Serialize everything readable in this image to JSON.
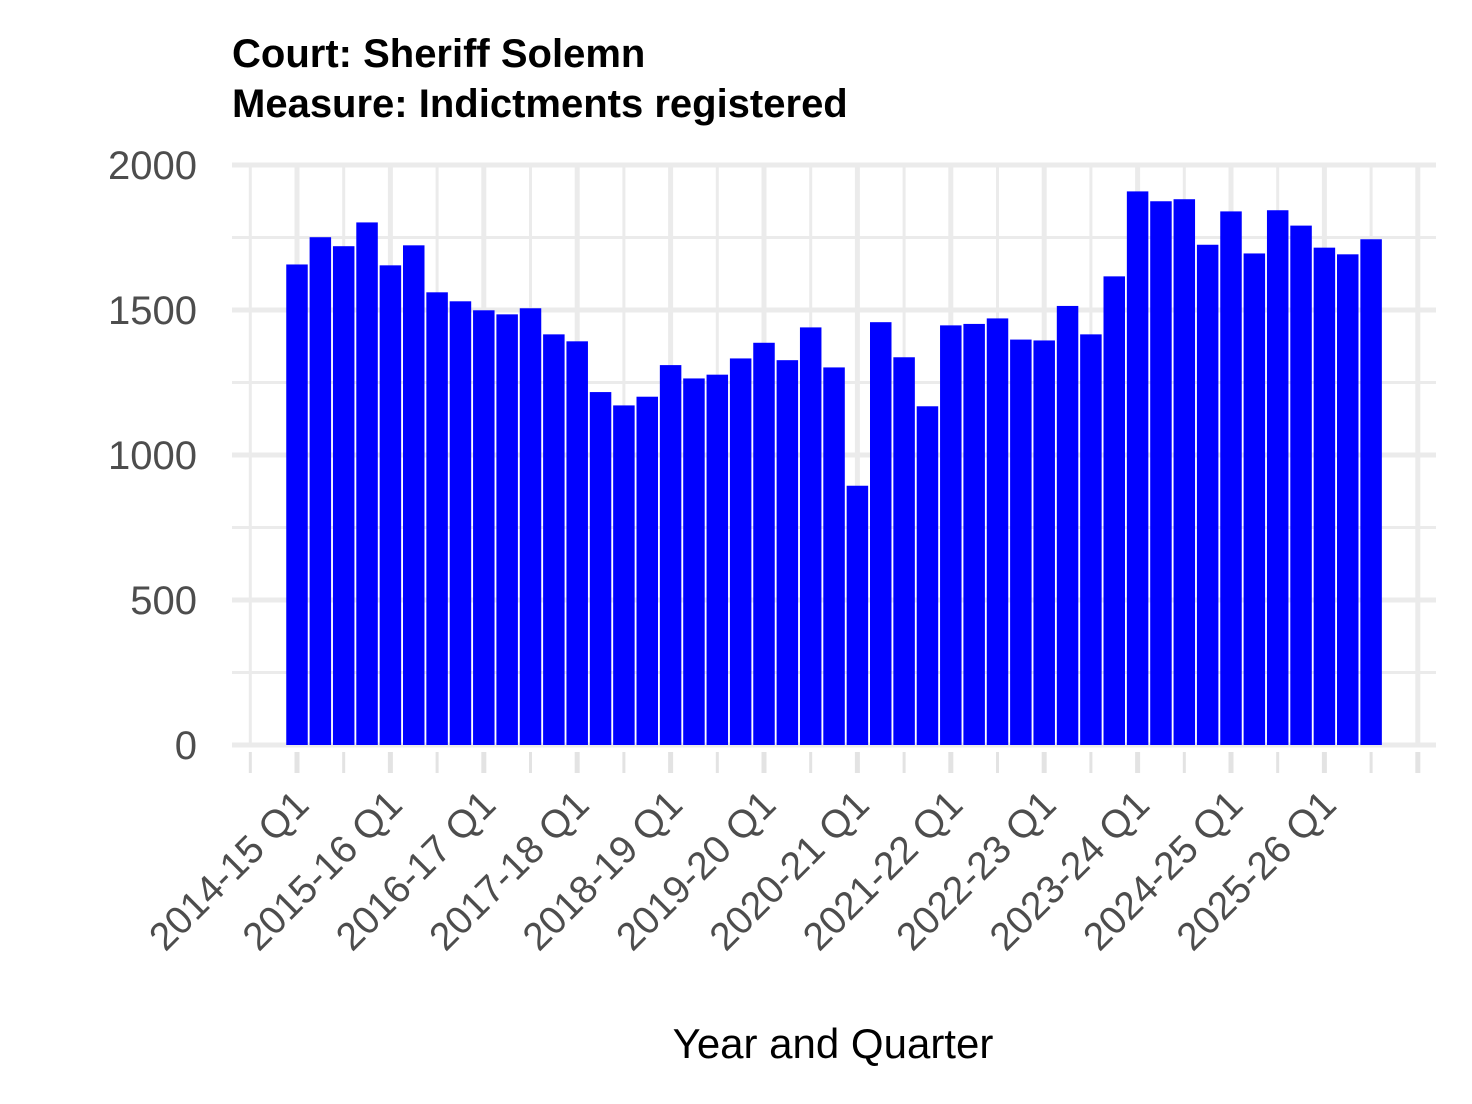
{
  "chart_data": {
    "type": "bar",
    "title_lines": [
      "Court: Sheriff Solemn",
      "Measure: Indictments registered"
    ],
    "xlabel": "Year and Quarter",
    "ylabel": "",
    "ylim": [
      0,
      2000
    ],
    "yticks": [
      0,
      500,
      1000,
      1500,
      2000
    ],
    "ytick_labels": [
      "0",
      "500",
      "1000",
      "1500",
      "2000"
    ],
    "grid": true,
    "bar_color": "#0000FF",
    "xtick_labels": [
      "2014-15 Q1",
      "2015-16 Q1",
      "2016-17 Q1",
      "2017-18 Q1",
      "2018-19 Q1",
      "2019-20 Q1",
      "2020-21 Q1",
      "2021-22 Q1",
      "2022-23 Q1",
      "2023-24 Q1",
      "2024-25 Q1",
      "2025-26 Q1"
    ],
    "categories": [
      "2014-15 Q1",
      "2014-15 Q2",
      "2014-15 Q3",
      "2014-15 Q4",
      "2015-16 Q1",
      "2015-16 Q2",
      "2015-16 Q3",
      "2015-16 Q4",
      "2016-17 Q1",
      "2016-17 Q2",
      "2016-17 Q3",
      "2016-17 Q4",
      "2017-18 Q1",
      "2017-18 Q2",
      "2017-18 Q3",
      "2017-18 Q4",
      "2018-19 Q1",
      "2018-19 Q2",
      "2018-19 Q3",
      "2018-19 Q4",
      "2019-20 Q1",
      "2019-20 Q2",
      "2019-20 Q3",
      "2019-20 Q4",
      "2020-21 Q1",
      "2020-21 Q2",
      "2020-21 Q3",
      "2020-21 Q4",
      "2021-22 Q1",
      "2021-22 Q2",
      "2021-22 Q3",
      "2021-22 Q4",
      "2022-23 Q1",
      "2022-23 Q2",
      "2022-23 Q3",
      "2022-23 Q4",
      "2023-24 Q1",
      "2023-24 Q2",
      "2023-24 Q3",
      "2023-24 Q4",
      "2024-25 Q1",
      "2024-25 Q2",
      "2024-25 Q3",
      "2024-25 Q4",
      "2025-26 Q1",
      "2025-26 Q2",
      "2025-26 Q3"
    ],
    "values": [
      1657,
      1751,
      1720,
      1802,
      1654,
      1723,
      1561,
      1530,
      1499,
      1485,
      1506,
      1416,
      1392,
      1217,
      1171,
      1201,
      1310,
      1264,
      1277,
      1333,
      1387,
      1327,
      1440,
      1302,
      894,
      1458,
      1337,
      1168,
      1447,
      1452,
      1471,
      1398,
      1395,
      1514,
      1416,
      1616,
      1909,
      1875,
      1882,
      1725,
      1840,
      1695,
      1844,
      1791,
      1715,
      1692,
      1744
    ]
  }
}
